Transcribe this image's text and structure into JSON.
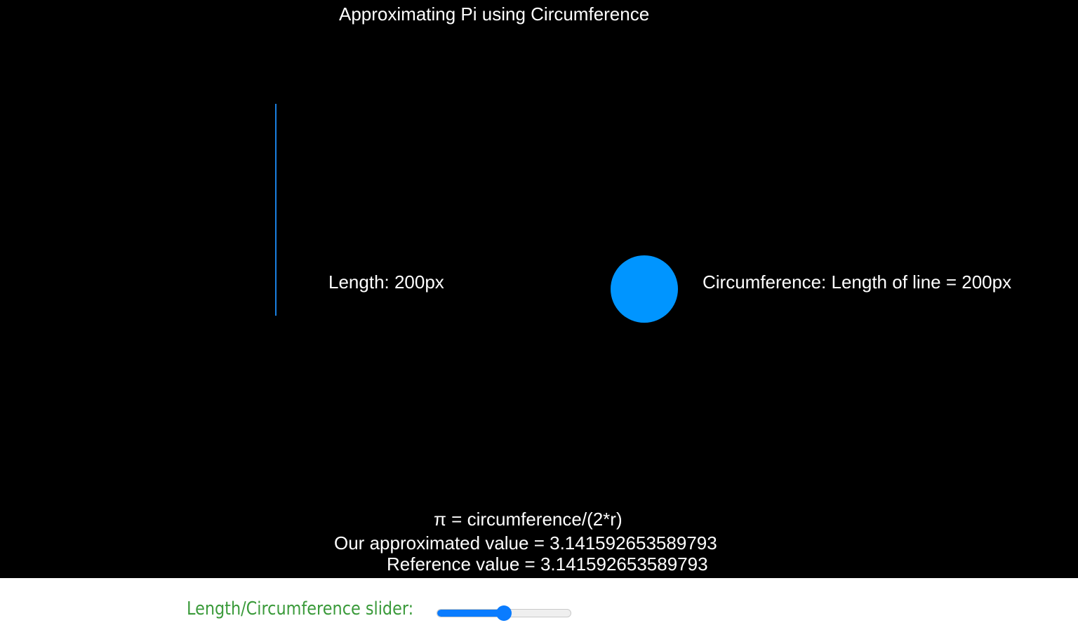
{
  "canvas": {
    "title": "Approximating Pi using Circumference",
    "length_label": "Length: 200px",
    "circumference_label": "Circumference: Length of line = 200px",
    "formula": "π = circumference/(2*r)",
    "approx_label": "Our approximated value = 3.141592653589793",
    "reference_label": "Reference value = 3.141592653589793",
    "background_color": "#000000",
    "text_color": "#ffffff",
    "line_color": "#1a7fe0",
    "circle_color": "#0095ff"
  },
  "controls": {
    "slider_label": "Length/Circumference slider:",
    "slider_label_color": "#3a9a3a",
    "slider_accent": "#0a7cff",
    "slider_value_fraction": 0.5
  }
}
